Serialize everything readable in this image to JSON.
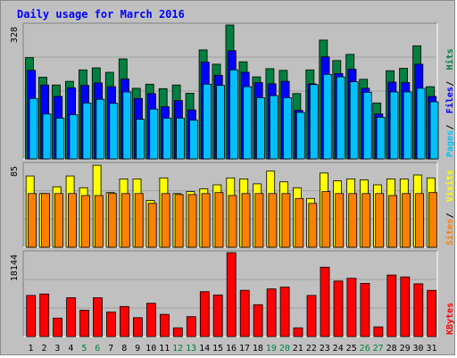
{
  "chart_data": {
    "type": "bar",
    "title": "Daily usage for March 2016",
    "categories": [
      "1",
      "2",
      "3",
      "4",
      "5",
      "6",
      "7",
      "8",
      "9",
      "10",
      "11",
      "12",
      "13",
      "14",
      "15",
      "16",
      "17",
      "18",
      "19",
      "20",
      "21",
      "22",
      "23",
      "24",
      "25",
      "26",
      "27",
      "28",
      "29",
      "30",
      "31"
    ],
    "weekend_days": [
      "5",
      "6",
      "12",
      "13",
      "19",
      "20",
      "26",
      "27"
    ],
    "panels": [
      {
        "id": "hits-files-pages",
        "max_label": "328",
        "ylim": [
          0,
          328
        ],
        "right_labels": [
          "Pages",
          "Files",
          "Hits"
        ],
        "series": [
          {
            "name": "Hits",
            "color": "#008040",
            "values": [
              248,
              200,
              181,
              190,
              218,
              223,
              212,
              245,
              173,
              183,
              172,
              181,
              161,
              267,
              232,
              328,
              238,
              201,
              221,
              217,
              160,
              218,
              291,
              241,
              256,
              195,
              137,
              216,
              222,
              277,
              177
            ]
          },
          {
            "name": "Files",
            "color": "#0000ff",
            "values": [
              217,
              181,
              153,
              174,
              180,
              186,
              177,
              196,
              148,
              160,
              128,
              143,
              120,
              237,
              205,
              265,
              212,
              187,
              184,
              190,
              119,
              184,
              250,
              209,
              220,
              173,
              110,
              188,
              187,
              232,
              153
            ]
          },
          {
            "name": "Pages",
            "color": "#00c0ff",
            "values": [
              148,
              110,
              100,
              108,
              137,
              146,
              136,
              164,
              97,
              122,
              100,
              100,
              95,
              183,
              180,
              218,
              177,
              150,
              155,
              150,
              114,
              182,
              207,
              201,
              189,
              163,
              102,
              164,
              164,
              173,
              140
            ]
          }
        ]
      },
      {
        "id": "visits-sites",
        "max_label": "85",
        "ylim": [
          0,
          85
        ],
        "right_labels": [
          "Sites",
          "Visits"
        ],
        "series": [
          {
            "name": "Visits",
            "color": "#ffff00",
            "values": [
              73,
              55,
              62,
              73,
              61,
              84,
              56,
              70,
              70,
              48,
              71,
              55,
              57,
              60,
              64,
              71,
              70,
              65,
              78,
              67,
              61,
              50,
              76,
              68,
              70,
              69,
              64,
              70,
              70,
              74,
              71
            ]
          },
          {
            "name": "Sites",
            "color": "#ff8000",
            "values": [
              55,
              55,
              55,
              55,
              53,
              53,
              55,
              55,
              55,
              45,
              55,
              54,
              54,
              55,
              56,
              53,
              55,
              55,
              55,
              55,
              50,
              45,
              57,
              55,
              55,
              55,
              55,
              53,
              55,
              55,
              56
            ]
          }
        ]
      },
      {
        "id": "kbytes",
        "max_label": "18144",
        "ylim": [
          0,
          18144
        ],
        "right_labels": [
          "KBytes"
        ],
        "series": [
          {
            "name": "KBytes",
            "color": "#ff0000",
            "values": [
              8900,
              9200,
              4000,
              8400,
              5700,
              8400,
              5300,
              6500,
              4100,
              7200,
              4800,
              1900,
              4300,
              9700,
              9000,
              18144,
              10000,
              6900,
              10300,
              10700,
              1900,
              8900,
              15000,
              12000,
              12600,
              11500,
              2100,
              13300,
              12900,
              11400,
              10000
            ]
          }
        ]
      }
    ]
  }
}
